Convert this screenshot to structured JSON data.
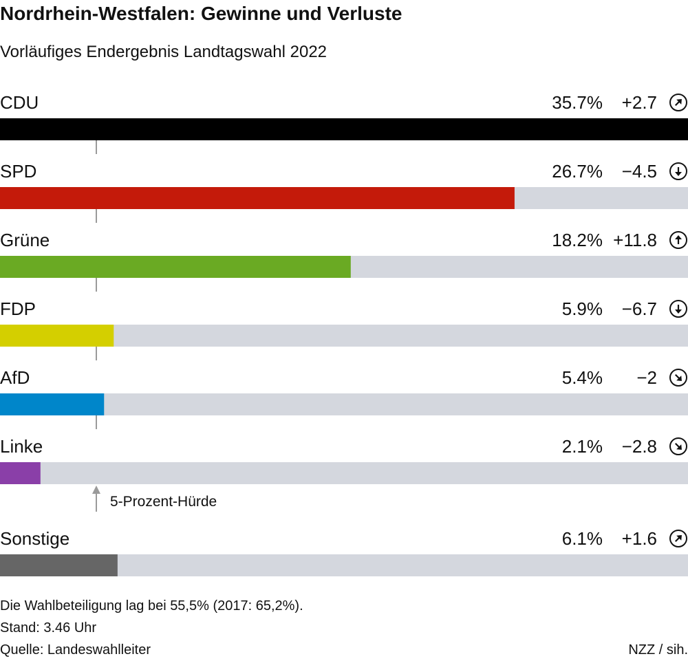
{
  "header": {
    "title": "Nordrhein-Westfalen: Gewinne und Verluste",
    "subtitle": "Vorläufiges Endergebnis Landtagswahl 2022"
  },
  "chart_data": {
    "type": "bar",
    "orientation": "horizontal",
    "categories": [
      "CDU",
      "SPD",
      "Grüne",
      "FDP",
      "AfD",
      "Linke",
      "Sonstige"
    ],
    "series": [
      {
        "values": [
          35.7,
          26.7,
          18.2,
          5.9,
          5.4,
          2.1,
          6.1
        ],
        "value_labels": [
          "35.7%",
          "26.7%",
          "18.2%",
          "5.9%",
          "5.4%",
          "2.1%",
          "6.1%"
        ]
      }
    ],
    "changes": [
      2.7,
      -4.5,
      11.8,
      -6.7,
      -2,
      -2.8,
      1.6
    ],
    "change_labels": [
      "+2.7",
      "−4.5",
      "+11.8",
      "−6.7",
      "−2",
      "−2.8",
      "+1.6"
    ],
    "trend_icons": [
      "arrow-up-right-icon",
      "arrow-down-icon",
      "arrow-up-icon",
      "arrow-down-icon",
      "arrow-down-right-icon",
      "arrow-down-right-icon",
      "arrow-up-right-icon"
    ],
    "colors": [
      "#000000",
      "#c41a0a",
      "#6aaa23",
      "#d4cf00",
      "#0086ca",
      "#8a3fa8",
      "#666666"
    ],
    "track_color": "#d4d7de",
    "xlim": [
      0,
      35.7
    ],
    "threshold": {
      "value": 5,
      "label": "5-Prozent-Hürde"
    },
    "grid": false
  },
  "footer": {
    "note": "Die Wahlbeteiligung lag bei 55,5% (2017: 65,2%).",
    "stand": "Stand: 3.46 Uhr",
    "source": "Quelle: Landeswahlleiter",
    "credit": "NZZ / sih."
  }
}
